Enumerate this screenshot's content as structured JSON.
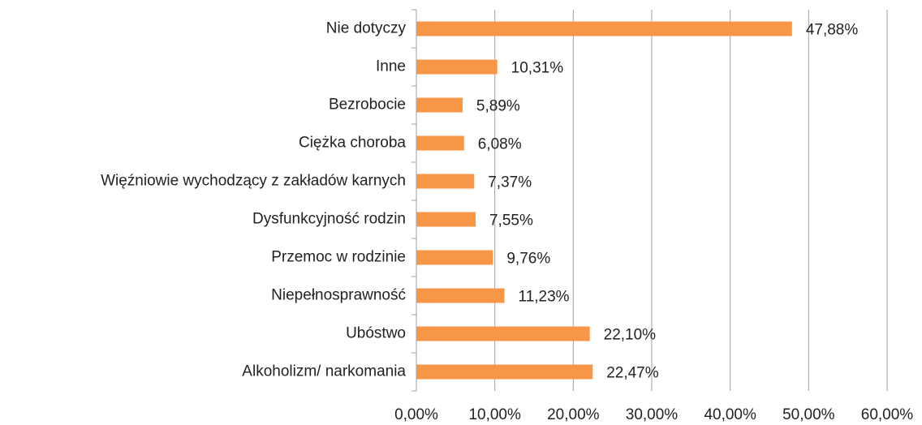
{
  "chart_data": {
    "type": "bar",
    "orientation": "horizontal",
    "categories": [
      "Nie dotyczy",
      "Inne",
      "Bezrobocie",
      "Ciężka choroba",
      "Więźniowie wychodzący z zakładów karnych",
      "Dysfunkcyjność rodzin",
      "Przemoc w rodzinie",
      "Niepełnosprawność",
      "Ubóstwo",
      "Alkoholizm/ narkomania"
    ],
    "values": [
      47.88,
      10.31,
      5.89,
      6.08,
      7.37,
      7.55,
      9.76,
      11.23,
      22.1,
      22.47
    ],
    "value_labels": [
      "47,88%",
      "10,31%",
      "5,89%",
      "6,08%",
      "7,37%",
      "7,55%",
      "9,76%",
      "11,23%",
      "22,10%",
      "22,47%"
    ],
    "color": "#f79646",
    "xlim": [
      0,
      60
    ],
    "xticks": [
      {
        "value": 0,
        "label": "0,00%"
      },
      {
        "value": 10,
        "label": "10,00%"
      },
      {
        "value": 20,
        "label": "20,00%"
      },
      {
        "value": 30,
        "label": "30,00%"
      },
      {
        "value": 40,
        "label": "40,00%"
      },
      {
        "value": 50,
        "label": "50,00%"
      },
      {
        "value": 60,
        "label": "60,00%"
      }
    ],
    "grid": true
  }
}
